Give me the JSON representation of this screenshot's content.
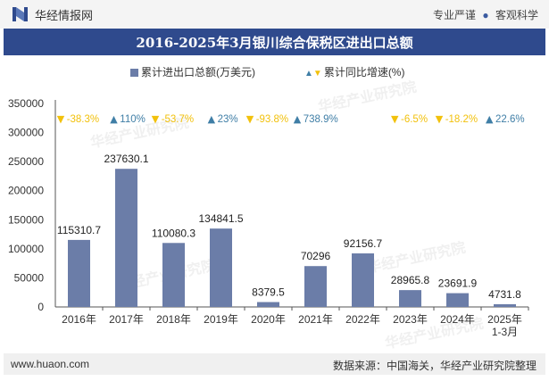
{
  "header": {
    "brand": "华经情报网",
    "tagline_left": "专业严谨",
    "tagline_right": "客观科学"
  },
  "title": "2016-2025年3月银川综合保税区进出口总额",
  "legend": {
    "bar_label": "累计进出口总额(万美元)",
    "growth_label": "累计同比增速(%)"
  },
  "footer": {
    "website": "www.huaon.com",
    "source": "数据来源：中国海关，华经产业研究院整理"
  },
  "watermark": {
    "text": "华经产业研究院",
    "url": "www.huaon.com"
  },
  "colors": {
    "bar": "#6b7da8",
    "up": "#3f7ea6",
    "down": "#f2c10c",
    "title_bg": "#2f4a8d"
  },
  "chart_data": {
    "type": "bar",
    "categories": [
      "2016年",
      "2017年",
      "2018年",
      "2019年",
      "2020年",
      "2021年",
      "2022年",
      "2023年",
      "2024年",
      "2025年\n1-3月"
    ],
    "series": [
      {
        "name": "累计进出口总额(万美元)",
        "values": [
          115310.7,
          237630.1,
          110080.3,
          134841.5,
          8379.5,
          70296,
          92156.7,
          28965.8,
          23691.9,
          4731.8
        ],
        "value_labels": [
          "115310.7",
          "237630.1",
          "110080.3",
          "134841.5",
          "8379.5",
          "70296",
          "92156.7",
          "28965.8",
          "23691.9",
          "4731.8"
        ]
      },
      {
        "name": "累计同比增速(%)",
        "values": [
          -38.3,
          110,
          -53.7,
          23,
          -93.8,
          738.9,
          null,
          -6.5,
          -18.2,
          22.6
        ],
        "value_labels": [
          "-38.3%",
          "110%",
          "-53.7%",
          "23%",
          "-93.8%",
          "738.9%",
          "",
          "-6.5%",
          "-18.2%",
          "22.6%"
        ]
      }
    ],
    "y_ticks": [
      "0",
      "50000",
      "100000",
      "150000",
      "200000",
      "250000",
      "300000",
      "350000"
    ],
    "ylim": [
      0,
      350000
    ],
    "grid": false,
    "legend_position": "top-center"
  }
}
